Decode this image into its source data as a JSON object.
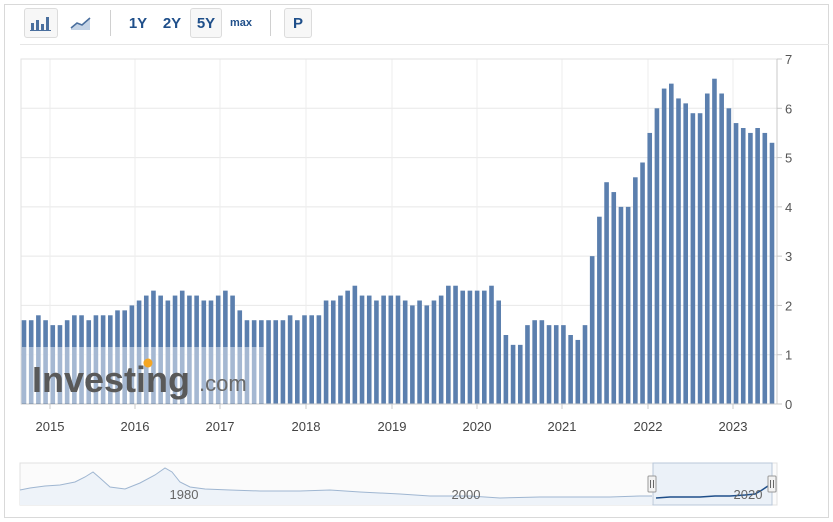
{
  "toolbar": {
    "bar_chart_icon": "bar-chart-icon",
    "line_chart_icon": "line-chart-icon",
    "ranges": [
      "1Y",
      "2Y",
      "5Y",
      "max"
    ],
    "selected_range": "5Y",
    "p_label": "P"
  },
  "watermark": "Investing.com",
  "navigator": {
    "labels": [
      "1980",
      "2000",
      "2020"
    ]
  },
  "colors": {
    "bar": "#5b7fae",
    "bar_faded": "#c9d6e6",
    "accent": "#1f4f8a",
    "nav_line": "#1f4f8a",
    "nav_bg_line": "#9fb6d1"
  },
  "chart_data": {
    "type": "bar",
    "x_ticks": [
      "2015",
      "2016",
      "2017",
      "2018",
      "2019",
      "2020",
      "2021",
      "2022",
      "2023"
    ],
    "y_ticks": [
      0,
      1,
      2,
      3,
      4,
      5,
      6,
      7
    ],
    "ylim": [
      0,
      7
    ],
    "grid": true,
    "y_axis_side": "right",
    "series": [
      {
        "values": [
          1.7,
          1.7,
          1.8,
          1.7,
          1.6,
          1.6,
          1.7,
          1.8,
          1.8,
          1.7,
          1.8,
          1.8,
          1.8,
          1.9,
          1.9,
          2.0,
          2.1,
          2.2,
          2.3,
          2.2,
          2.1,
          2.2,
          2.3,
          2.2,
          2.2,
          2.1,
          2.1,
          2.2,
          2.3,
          2.2,
          1.9,
          1.7,
          1.7,
          1.7,
          1.7,
          1.7,
          1.7,
          1.8,
          1.7,
          1.8,
          1.8,
          1.8,
          2.1,
          2.1,
          2.2,
          2.3,
          2.4,
          2.2,
          2.2,
          2.1,
          2.2,
          2.2,
          2.2,
          2.1,
          2.0,
          2.1,
          2.0,
          2.1,
          2.2,
          2.4,
          2.4,
          2.3,
          2.3,
          2.3,
          2.3,
          2.4,
          2.1,
          1.4,
          1.2,
          1.2,
          1.6,
          1.7,
          1.7,
          1.6,
          1.6,
          1.6,
          1.4,
          1.3,
          1.6,
          3.0,
          3.8,
          4.5,
          4.3,
          4.0,
          4.0,
          4.6,
          4.9,
          5.5,
          6.0,
          6.4,
          6.5,
          6.2,
          6.1,
          5.9,
          5.9,
          6.3,
          6.6,
          6.3,
          6.0,
          5.7,
          5.6,
          5.5,
          5.6,
          5.5,
          5.3
        ]
      }
    ]
  }
}
